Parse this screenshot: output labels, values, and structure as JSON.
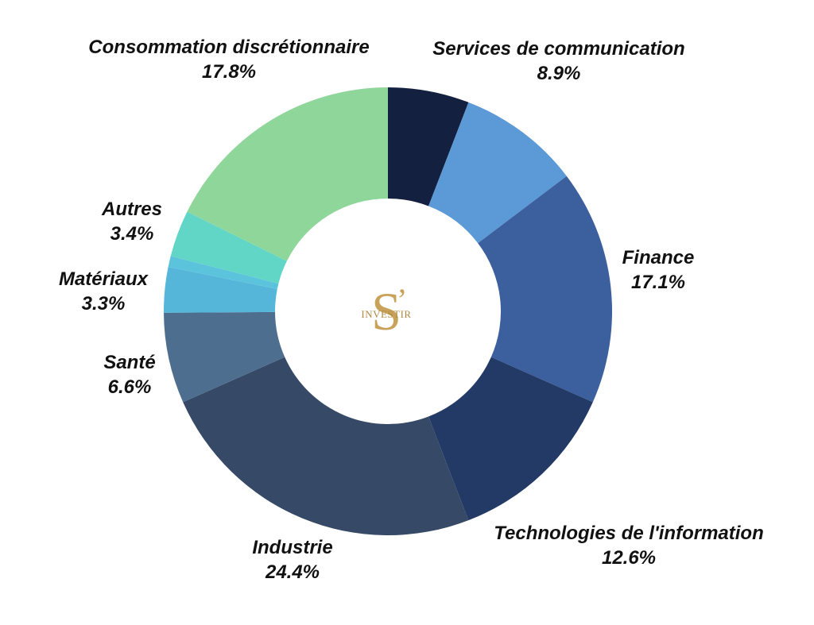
{
  "chart_data": {
    "type": "pie",
    "donut": true,
    "legend": "none",
    "slices": [
      {
        "name": "",
        "value": 5.9,
        "label": "",
        "color": "#13203f"
      },
      {
        "name": "Services de communication",
        "value": 8.9,
        "label": "8.9%",
        "color": "#5b9ad6"
      },
      {
        "name": "Finance",
        "value": 17.1,
        "label": "17.1%",
        "color": "#3c5f9e"
      },
      {
        "name": "Technologies de l'information",
        "value": 12.6,
        "label": "12.6%",
        "color": "#233a67"
      },
      {
        "name": "Industrie",
        "value": 24.4,
        "label": "24.4%",
        "color": "#364966"
      },
      {
        "name": "Santé",
        "value": 6.6,
        "label": "6.6%",
        "color": "#4d6e8e"
      },
      {
        "name": "Matériaux",
        "value": 3.3,
        "label": "3.3%",
        "color": "#56b6da"
      },
      {
        "name": "",
        "value": 0.8,
        "label": "",
        "color": "#5bc4dc"
      },
      {
        "name": "Autres",
        "value": 3.4,
        "label": "3.4%",
        "color": "#62d6c6"
      },
      {
        "name": "Consommation discrétionnaire",
        "value": 17.8,
        "label": "17.8%",
        "color": "#8fd69b"
      }
    ]
  },
  "logo": {
    "letter": "S",
    "apostrophe": "’",
    "word": "INVESTIR"
  }
}
